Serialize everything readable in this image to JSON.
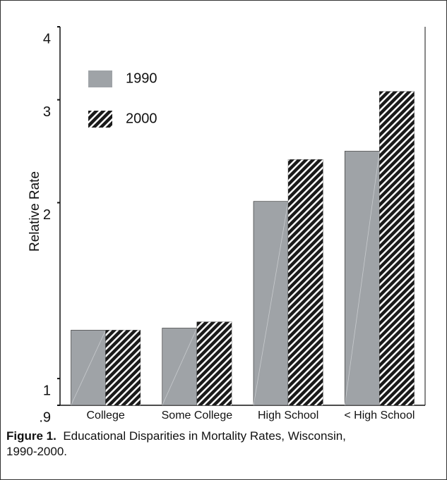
{
  "chart_data": {
    "type": "bar",
    "categories": [
      "College",
      "Some College",
      "High School",
      "< High School"
    ],
    "series": [
      {
        "name": "1990",
        "color": "#9fa3a7",
        "values": [
          1.21,
          1.22,
          2.01,
          2.45
        ]
      },
      {
        "name": "2000",
        "color": "#1a1a1a",
        "pattern": "hatched",
        "values": [
          1.21,
          1.25,
          2.37,
          3.1
        ]
      }
    ],
    "y_label": "Relative Rate",
    "log_y": true,
    "ylim": [
      0.9,
      4
    ],
    "yticks": [
      {
        "value": 0.9,
        "label": ".9"
      },
      1,
      2,
      3,
      4
    ],
    "legend": "top-left",
    "caption_label": "Figure 1.",
    "caption_text": "Educational Disparities in Mortality Rates, Wisconsin, 1990-2000."
  }
}
